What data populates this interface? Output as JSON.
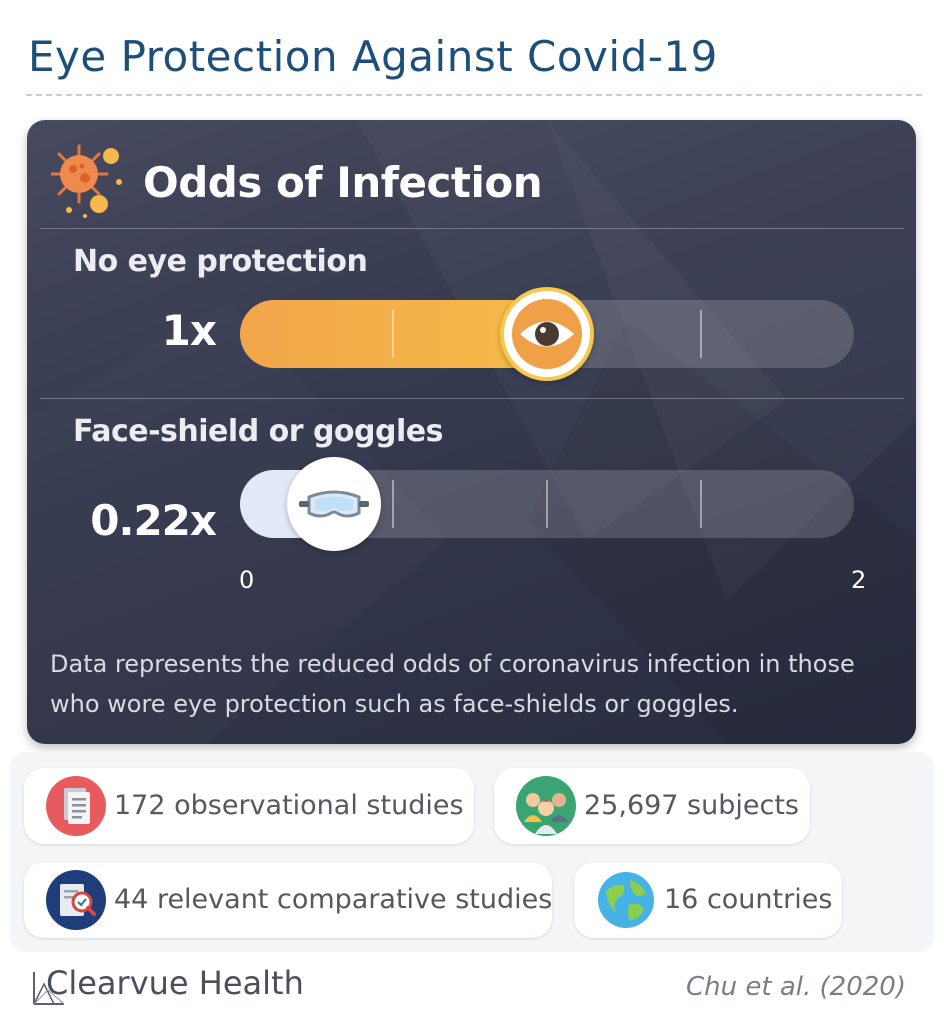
{
  "page": {
    "title": "Eye Protection Against Covid-19"
  },
  "card": {
    "title": "Odds of Infection",
    "icon": "virus-icon",
    "note": "Data represents the reduced odds of coronavirus infection in those who wore eye protection such as face-shields or goggles."
  },
  "chart_data": {
    "type": "bar",
    "orientation": "horizontal",
    "title": "Odds of Infection",
    "categories": [
      "No eye protection",
      "Face-shield or goggles"
    ],
    "values": [
      1,
      0.22
    ],
    "value_labels": [
      "1x",
      "0.22x"
    ],
    "marker_icons": [
      "eye-icon",
      "goggles-icon"
    ],
    "xlim": [
      0,
      2
    ],
    "x_tick_labels": [
      "0",
      "2"
    ],
    "grid": true,
    "colors": {
      "no_protection": "#f3ad49",
      "protection": "#e1e9f8"
    }
  },
  "stats": [
    {
      "text": "172 observational studies",
      "icon": "document-icon"
    },
    {
      "text": "25,697 subjects",
      "icon": "people-icon"
    },
    {
      "text": "44 relevant comparative studies",
      "icon": "document-search-icon"
    },
    {
      "text": "16 countries",
      "icon": "globe-icon"
    }
  ],
  "footer": {
    "brand": "Clearvue Health",
    "citation": "Chu et al. (2020)"
  },
  "colors": {
    "title": "#1d4f79",
    "card_bg": "#363a4f"
  }
}
